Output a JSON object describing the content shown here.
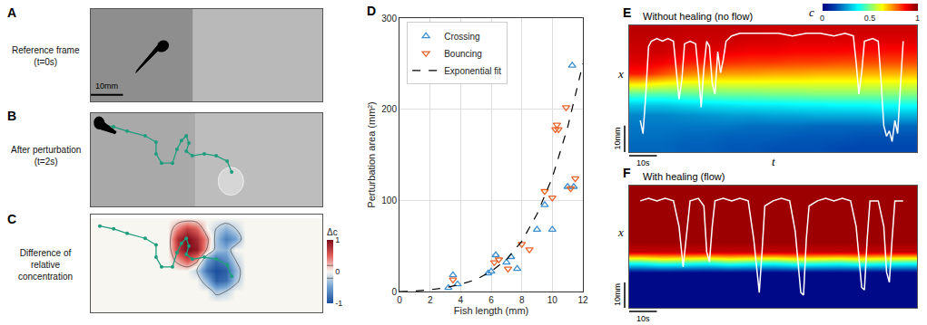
{
  "chart_data": [
    {
      "type": "image",
      "panel": "A",
      "label": [
        "Reference frame",
        "(t=0s)"
      ],
      "xlim": [
        0,
        72
      ],
      "ylim": [
        0,
        28
      ],
      "tick_labels": false,
      "scale_bar": {
        "length": 10,
        "label": "10mm"
      }
    },
    {
      "type": "image",
      "panel": "B",
      "label": [
        "After perturbation",
        "(t=2s)"
      ],
      "xlim": [
        0,
        72
      ],
      "ylim": [
        0,
        28
      ],
      "tick_labels": false,
      "trajectory": {
        "color": "#1f9e7e",
        "marker": "circle",
        "x": [
          2.8,
          7.1,
          11.3,
          16.9,
          20.3,
          20.3,
          22.0,
          25.4,
          26.8,
          28.2,
          29.7,
          30.5,
          29.7,
          31.6,
          35.3,
          39.0,
          42.4,
          43.8
        ],
        "values": [
          24.7,
          23.9,
          22.6,
          21.2,
          19.3,
          15.8,
          13.0,
          13.0,
          17.1,
          19.8,
          21.2,
          19.0,
          16.6,
          15.2,
          15.8,
          15.2,
          13.6,
          10.3
        ]
      }
    },
    {
      "type": "contour",
      "panel": "C",
      "label": [
        "Difference of",
        "relative",
        "concentration"
      ],
      "xlim": [
        0,
        72
      ],
      "ylim": [
        0,
        28
      ],
      "tick_labels": false,
      "x": [
        0,
        3,
        6,
        9,
        12,
        15,
        18,
        21,
        24,
        27,
        30,
        33,
        36,
        39,
        42,
        45,
        48,
        51,
        54,
        57,
        60,
        63,
        66,
        69,
        72
      ],
      "y": [
        0,
        3,
        6,
        9,
        12,
        15,
        18,
        21,
        24,
        27
      ],
      "cells": [
        [
          0,
          0,
          0,
          0,
          0,
          0,
          0,
          0,
          0,
          0,
          0,
          0,
          0,
          0,
          0,
          0,
          0,
          0,
          0,
          0,
          0,
          0,
          0,
          0,
          0
        ],
        [
          0,
          0,
          0,
          0,
          0,
          0,
          0,
          0,
          0,
          0,
          0,
          0,
          0,
          0,
          0,
          0,
          0,
          0,
          0,
          0,
          0,
          0,
          0,
          0,
          0
        ],
        [
          0,
          0,
          0,
          0,
          0,
          0,
          0,
          0,
          0,
          0,
          0,
          0,
          0,
          -0.3,
          -0.2,
          0,
          0,
          0,
          0,
          0,
          0,
          0,
          0,
          0,
          0
        ],
        [
          0,
          0,
          0,
          0,
          0,
          0,
          0,
          0,
          0,
          0,
          0,
          0,
          -0.4,
          -0.9,
          -0.8,
          -0.3,
          0,
          0,
          0,
          0,
          0,
          0,
          0,
          0,
          0
        ],
        [
          0,
          0,
          0,
          0,
          0,
          0,
          0,
          0,
          0,
          0,
          0,
          -0.2,
          -0.8,
          -1,
          -0.9,
          -0.4,
          0,
          0,
          0,
          0,
          0,
          0,
          0,
          0,
          0
        ],
        [
          0,
          0,
          0,
          0,
          0,
          0,
          0,
          0,
          0,
          0.3,
          0.6,
          0.3,
          -0.5,
          -0.8,
          -0.6,
          -0.2,
          0,
          0,
          0,
          0,
          0,
          0,
          0,
          0,
          0
        ],
        [
          0,
          0,
          0,
          0,
          0,
          0,
          0,
          0,
          0,
          0.7,
          1,
          0.9,
          0.2,
          -0.3,
          -0.4,
          0,
          0,
          0,
          0,
          0,
          0,
          0,
          0,
          0,
          0
        ],
        [
          0,
          0,
          0,
          0,
          0,
          0,
          0,
          0,
          0,
          0.8,
          1,
          0.8,
          0.3,
          -0.3,
          -0.7,
          -0.5,
          0,
          0,
          0,
          0,
          0,
          0,
          0,
          0,
          0
        ],
        [
          0,
          0,
          0,
          0,
          0,
          0,
          0,
          0,
          0,
          0.4,
          0.7,
          0.5,
          0,
          -0.2,
          -0.4,
          -0.2,
          0,
          0,
          0,
          0,
          0,
          0,
          0,
          0,
          0
        ],
        [
          0,
          0,
          0,
          0,
          0,
          0,
          0,
          0,
          0,
          0,
          0,
          0,
          0,
          0,
          0,
          0,
          0,
          0,
          0,
          0,
          0,
          0,
          0,
          0,
          0
        ]
      ],
      "colorbar": {
        "title": "Δc",
        "range": [
          -1,
          1
        ],
        "ticks": [
          -1,
          0,
          1
        ]
      },
      "trajectory": {
        "color": "#1f9e7e",
        "marker": "circle",
        "x": [
          2.8,
          7.1,
          11.3,
          16.9,
          20.3,
          20.3,
          22.0,
          25.4,
          26.8,
          28.2,
          29.7,
          30.5,
          29.7,
          31.6,
          35.3,
          39.0,
          42.4,
          43.8
        ],
        "values": [
          24.7,
          23.9,
          22.6,
          21.2,
          19.3,
          15.8,
          13.0,
          13.0,
          17.1,
          19.8,
          21.2,
          19.0,
          16.6,
          15.2,
          15.8,
          15.2,
          13.6,
          10.3
        ]
      }
    },
    {
      "type": "scatter",
      "panel": "D",
      "xlabel": "Fish length (mm)",
      "ylabel": "Perturbation area (mm²)",
      "xlim": [
        0,
        12
      ],
      "ylim": [
        0,
        300
      ],
      "xticks": [
        0,
        2,
        4,
        6,
        8,
        10,
        12
      ],
      "yticks": [
        0,
        100,
        200,
        300
      ],
      "grid": true,
      "legend": "upper left",
      "series": [
        {
          "name": "Crossing",
          "type": "scatter",
          "marker": "triangle-up-open",
          "color": "#3b8fd0",
          "x": [
            3.2,
            3.5,
            3.8,
            5.8,
            6.0,
            6.3,
            7.0,
            7.3,
            7.7,
            9.0,
            9.5,
            10.0,
            11.0,
            11.3,
            11.4
          ],
          "values": [
            4,
            18,
            8,
            20,
            22,
            40,
            32,
            38,
            25,
            68,
            95,
            68,
            115,
            248,
            115
          ]
        },
        {
          "name": "Bouncing",
          "type": "scatter",
          "marker": "triangle-down-open",
          "color": "#e8642a",
          "x": [
            3.5,
            6.2,
            6.5,
            7.1,
            8.0,
            8.5,
            9.5,
            10.0,
            10.2,
            10.3,
            10.4,
            10.9,
            11.5,
            11.2
          ],
          "values": [
            13,
            32,
            35,
            25,
            52,
            46,
            110,
            103,
            178,
            183,
            178,
            202,
            124,
            113
          ]
        },
        {
          "name": "Exponential fit",
          "type": "line",
          "line_style": "dash",
          "color": "#000000",
          "x": [
            0,
            1,
            2,
            3,
            4,
            5,
            6,
            7,
            8,
            9,
            10,
            11,
            12
          ],
          "values": [
            0,
            0.5,
            2,
            4,
            8,
            13,
            22,
            35,
            55,
            85,
            125,
            180,
            250
          ]
        }
      ]
    },
    {
      "type": "heatmap",
      "panel": "E",
      "title": "Without healing (no flow)",
      "xlabel": "t",
      "ylabel": "x",
      "tick_labels": false,
      "xlim": [
        -4,
        100
      ],
      "ylim": [
        -2,
        46
      ],
      "x": [
        0,
        8,
        16,
        24,
        32,
        40,
        48,
        56,
        64,
        72,
        80,
        88,
        96
      ],
      "y": [
        0,
        4,
        8,
        12,
        16,
        20,
        24,
        28,
        32,
        36,
        40,
        44
      ],
      "cells": [
        [
          0.18,
          0.18,
          0.17,
          0.17,
          0.16,
          0.16,
          0.15,
          0.15,
          0.15,
          0.14,
          0.14,
          0.14,
          0.14
        ],
        [
          0.19,
          0.19,
          0.18,
          0.18,
          0.17,
          0.17,
          0.17,
          0.16,
          0.16,
          0.16,
          0.15,
          0.15,
          0.15
        ],
        [
          0.2,
          0.2,
          0.2,
          0.2,
          0.2,
          0.19,
          0.19,
          0.19,
          0.18,
          0.18,
          0.18,
          0.18,
          0.18
        ],
        [
          0.22,
          0.22,
          0.23,
          0.24,
          0.25,
          0.25,
          0.26,
          0.26,
          0.27,
          0.27,
          0.27,
          0.28,
          0.28
        ],
        [
          0.3,
          0.3,
          0.32,
          0.33,
          0.34,
          0.35,
          0.35,
          0.36,
          0.36,
          0.37,
          0.37,
          0.38,
          0.38
        ],
        [
          0.45,
          0.45,
          0.46,
          0.47,
          0.48,
          0.48,
          0.49,
          0.49,
          0.5,
          0.5,
          0.5,
          0.5,
          0.5
        ],
        [
          0.65,
          0.62,
          0.6,
          0.6,
          0.6,
          0.6,
          0.6,
          0.6,
          0.6,
          0.6,
          0.6,
          0.6,
          0.6
        ],
        [
          0.85,
          0.8,
          0.75,
          0.73,
          0.72,
          0.72,
          0.71,
          0.71,
          0.7,
          0.7,
          0.7,
          0.7,
          0.7
        ],
        [
          0.9,
          0.88,
          0.85,
          0.84,
          0.83,
          0.82,
          0.82,
          0.81,
          0.81,
          0.8,
          0.8,
          0.8,
          0.8
        ],
        [
          0.92,
          0.92,
          0.9,
          0.9,
          0.89,
          0.88,
          0.88,
          0.87,
          0.87,
          0.87,
          0.86,
          0.86,
          0.86
        ],
        [
          0.93,
          0.93,
          0.92,
          0.92,
          0.92,
          0.91,
          0.91,
          0.9,
          0.9,
          0.9,
          0.9,
          0.9,
          0.9
        ],
        [
          0.94,
          0.94,
          0.93,
          0.93,
          0.93,
          0.93,
          0.92,
          0.92,
          0.92,
          0.92,
          0.92,
          0.92,
          0.92
        ]
      ],
      "colorbar": {
        "title": "c",
        "range": [
          0,
          1
        ],
        "ticks": [
          0,
          0.5,
          1
        ]
      },
      "scale_bar_t": {
        "length": 10,
        "label": "10s"
      },
      "scale_bar_x": {
        "length": 10,
        "label": "10mm"
      },
      "series": [
        {
          "type": "line",
          "color": "#ffffff",
          "x": [
            0,
            1,
            2,
            3,
            4,
            6,
            8,
            10,
            12,
            13,
            14,
            15,
            16,
            18,
            20,
            21,
            22,
            23,
            24,
            25,
            26,
            27,
            28,
            29,
            30,
            31,
            33,
            36,
            40,
            45,
            50,
            55,
            60,
            65,
            70,
            74,
            77,
            78,
            79,
            80,
            81,
            84,
            86,
            87,
            88,
            89,
            90,
            91,
            92,
            93,
            94,
            95
          ],
          "values": [
            10,
            5,
            20,
            38,
            40,
            41,
            40,
            41,
            40,
            30,
            18,
            25,
            39,
            40,
            39,
            28,
            15,
            30,
            40,
            38,
            24,
            20,
            36,
            28,
            33,
            40,
            42,
            43,
            43,
            43,
            43,
            42,
            43,
            43,
            42,
            43,
            42,
            32,
            20,
            28,
            40,
            41,
            40,
            25,
            8,
            4,
            6,
            2,
            10,
            5,
            22,
            40
          ]
        }
      ]
    },
    {
      "type": "heatmap",
      "panel": "F",
      "title": "With healing (flow)",
      "ylabel": "x",
      "tick_labels": false,
      "xlim": [
        -4,
        100
      ],
      "ylim": [
        -2,
        46
      ],
      "x": [
        0,
        8,
        16,
        24,
        32,
        40,
        48,
        56,
        64,
        72,
        80,
        88,
        96
      ],
      "y": [
        0,
        4,
        8,
        12,
        16,
        20,
        24,
        28,
        32,
        36,
        40,
        44
      ],
      "cells": [
        [
          0.02,
          0.02,
          0.02,
          0.02,
          0.02,
          0.02,
          0.02,
          0.02,
          0.02,
          0.02,
          0.02,
          0.02,
          0.02
        ],
        [
          0.02,
          0.02,
          0.02,
          0.02,
          0.02,
          0.02,
          0.02,
          0.02,
          0.02,
          0.02,
          0.02,
          0.02,
          0.02
        ],
        [
          0.02,
          0.02,
          0.02,
          0.02,
          0.02,
          0.02,
          0.02,
          0.02,
          0.02,
          0.02,
          0.02,
          0.02,
          0.02
        ],
        [
          0.02,
          0.02,
          0.02,
          0.02,
          0.02,
          0.02,
          0.02,
          0.02,
          0.02,
          0.02,
          0.02,
          0.02,
          0.02
        ],
        [
          0.45,
          0.5,
          0.48,
          0.45,
          0.5,
          0.47,
          0.45,
          0.5,
          0.48,
          0.46,
          0.5,
          0.47,
          0.45
        ],
        [
          0.93,
          0.93,
          0.93,
          0.93,
          0.93,
          0.93,
          0.93,
          0.93,
          0.93,
          0.93,
          0.93,
          0.93,
          0.93
        ],
        [
          0.97,
          0.97,
          0.97,
          0.97,
          0.97,
          0.97,
          0.97,
          0.97,
          0.97,
          0.97,
          0.97,
          0.97,
          0.97
        ],
        [
          0.97,
          0.97,
          0.97,
          0.97,
          0.97,
          0.97,
          0.97,
          0.97,
          0.97,
          0.97,
          0.97,
          0.97,
          0.97
        ],
        [
          0.97,
          0.97,
          0.97,
          0.97,
          0.97,
          0.97,
          0.97,
          0.97,
          0.97,
          0.97,
          0.97,
          0.97,
          0.97
        ],
        [
          0.97,
          0.97,
          0.97,
          0.97,
          0.97,
          0.97,
          0.97,
          0.97,
          0.97,
          0.97,
          0.97,
          0.97,
          0.97
        ],
        [
          0.97,
          0.97,
          0.97,
          0.97,
          0.97,
          0.97,
          0.97,
          0.97,
          0.97,
          0.97,
          0.97,
          0.97,
          0.97
        ],
        [
          0.97,
          0.97,
          0.97,
          0.97,
          0.97,
          0.97,
          0.97,
          0.97,
          0.97,
          0.97,
          0.97,
          0.97,
          0.97
        ]
      ],
      "scale_bar_t": {
        "length": 10,
        "label": "10s"
      },
      "scale_bar_x": {
        "length": 10,
        "label": "10mm"
      },
      "series": [
        {
          "type": "line",
          "color": "#ffffff",
          "x": [
            0,
            3,
            6,
            9,
            12,
            14,
            15.5,
            17,
            18,
            21,
            23,
            24,
            25,
            26,
            27,
            30,
            33,
            36,
            39,
            41,
            43,
            44,
            45,
            48,
            51,
            54,
            56,
            58,
            59,
            60,
            61,
            64,
            67,
            70,
            73,
            76,
            78,
            80,
            81,
            82,
            83,
            86,
            88,
            89,
            90,
            91,
            92,
            95
          ],
          "values": [
            40,
            41,
            40,
            41,
            40,
            30,
            14,
            30,
            40,
            41,
            38,
            20,
            16,
            30,
            40,
            41,
            40,
            41,
            40,
            25,
            4,
            20,
            38,
            40,
            41,
            40,
            28,
            4,
            3,
            25,
            38,
            40,
            41,
            40,
            41,
            40,
            30,
            6,
            5,
            25,
            40,
            40,
            30,
            12,
            8,
            25,
            40,
            40
          ]
        }
      ]
    }
  ]
}
